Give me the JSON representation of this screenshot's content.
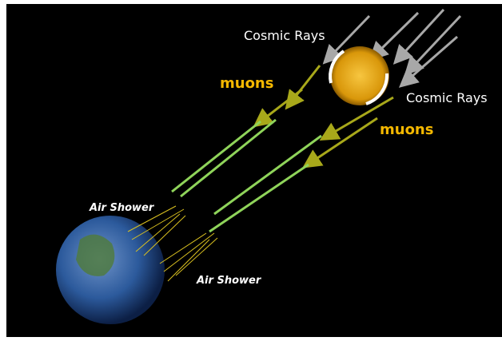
{
  "labels": {
    "cosmic_rays_top": "Cosmic Rays",
    "cosmic_rays_right": "Cosmic Rays",
    "muons_left": "muons",
    "muons_right": "muons",
    "air_shower_top": "Air Shower",
    "air_shower_bottom": "Air Shower"
  }
}
